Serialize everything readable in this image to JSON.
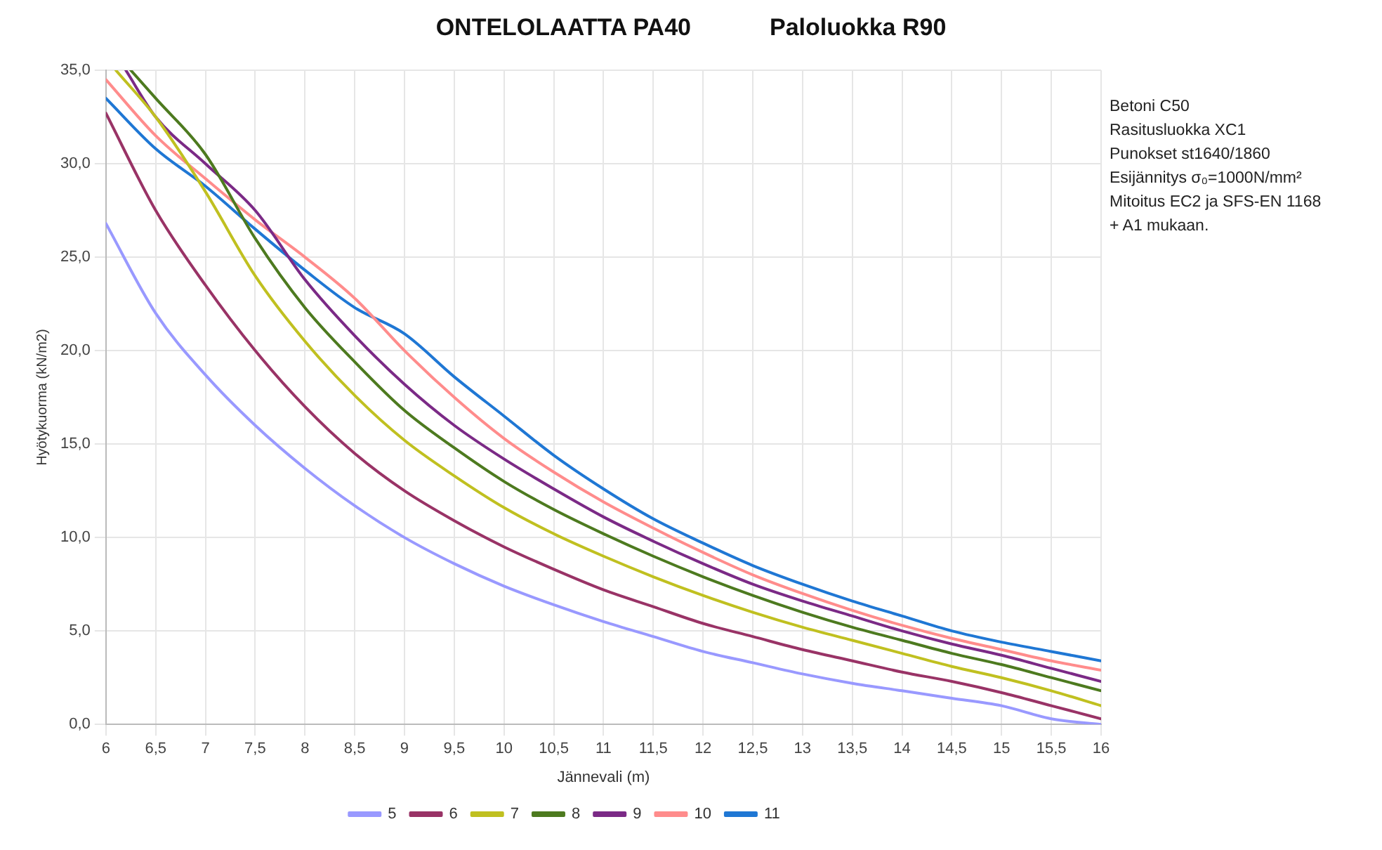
{
  "chart_data": {
    "type": "line",
    "title": "ONTELOLAATTA PA40",
    "subtitle": "Paloluokka R90",
    "xlabel": "Jännevali (m)",
    "ylabel": "Hyötykuorma (kN/m2)",
    "annotations": [
      "Betoni C50",
      "Rasitusluokka XC1",
      "Punokset st1640/1860",
      "Esijännitys σ₀=1000N/mm²",
      "Mitoitus EC2 ja SFS-EN 1168",
      "+ A1 mukaan."
    ],
    "x": [
      6,
      6.5,
      7,
      7.5,
      8,
      8.5,
      9,
      9.5,
      10,
      10.5,
      11,
      11.5,
      12,
      12.5,
      13,
      13.5,
      14,
      14.5,
      15,
      15.5,
      16
    ],
    "series": [
      {
        "name": "5",
        "color": "#9999ff",
        "values": [
          26.8,
          22.0,
          18.7,
          16.0,
          13.7,
          11.7,
          10.0,
          8.6,
          7.4,
          6.4,
          5.5,
          4.7,
          3.9,
          3.3,
          2.7,
          2.2,
          1.8,
          1.4,
          1.0,
          0.3,
          0.0
        ]
      },
      {
        "name": "6",
        "color": "#993366",
        "values": [
          32.7,
          27.5,
          23.5,
          20.0,
          17.0,
          14.5,
          12.5,
          10.9,
          9.5,
          8.3,
          7.2,
          6.3,
          5.4,
          4.7,
          4.0,
          3.4,
          2.8,
          2.3,
          1.7,
          1.0,
          0.3
        ]
      },
      {
        "name": "7",
        "color": "#c0c020",
        "x": [
          6.1,
          6.5,
          7,
          7.5,
          8,
          8.5,
          9,
          9.5,
          10,
          10.5,
          11,
          11.5,
          12,
          12.5,
          13,
          13.5,
          14,
          14.5,
          15,
          15.5,
          16
        ],
        "values": [
          35.0,
          32.5,
          28.5,
          24.0,
          20.5,
          17.6,
          15.2,
          13.3,
          11.6,
          10.2,
          9.0,
          7.9,
          6.9,
          6.0,
          5.2,
          4.5,
          3.8,
          3.1,
          2.5,
          1.8,
          1.0
        ]
      },
      {
        "name": "8",
        "color": "#4d7a1f",
        "x": [
          6.25,
          6.5,
          7,
          7.5,
          8,
          8.5,
          9,
          9.5,
          10,
          10.5,
          11,
          11.5,
          12,
          12.5,
          13,
          13.5,
          14,
          14.5,
          15,
          15.5,
          16
        ],
        "values": [
          35.0,
          33.5,
          30.5,
          26.0,
          22.3,
          19.4,
          16.8,
          14.8,
          13.0,
          11.5,
          10.2,
          9.0,
          7.9,
          6.9,
          6.0,
          5.2,
          4.5,
          3.8,
          3.2,
          2.5,
          1.8
        ]
      },
      {
        "name": "9",
        "color": "#7b2a86",
        "x": [
          6.2,
          6.5,
          7,
          7.5,
          8,
          8.5,
          9,
          9.5,
          10,
          10.5,
          11,
          11.5,
          12,
          12.5,
          13,
          13.5,
          14,
          14.5,
          15,
          15.5,
          16
        ],
        "values": [
          35.0,
          32.5,
          30.0,
          27.5,
          23.8,
          20.8,
          18.2,
          16.0,
          14.2,
          12.6,
          11.1,
          9.8,
          8.6,
          7.5,
          6.6,
          5.8,
          5.0,
          4.3,
          3.7,
          3.0,
          2.3
        ]
      },
      {
        "name": "10",
        "color": "#ff8c8c",
        "values": [
          34.5,
          31.5,
          29.2,
          27.0,
          25.0,
          22.8,
          20.0,
          17.5,
          15.3,
          13.5,
          11.9,
          10.5,
          9.2,
          8.0,
          7.0,
          6.1,
          5.3,
          4.6,
          4.0,
          3.4,
          2.9
        ]
      },
      {
        "name": "11",
        "color": "#1f77d4",
        "values": [
          33.5,
          30.8,
          28.8,
          26.5,
          24.3,
          22.3,
          20.9,
          18.6,
          16.5,
          14.4,
          12.6,
          11.0,
          9.7,
          8.5,
          7.5,
          6.6,
          5.8,
          5.0,
          4.4,
          3.9,
          3.4
        ]
      }
    ],
    "xlim": [
      6,
      16
    ],
    "xticks": [
      6,
      {
        "value": 6.5,
        "label": "6,5"
      },
      7,
      {
        "value": 7.5,
        "label": "7,5"
      },
      8,
      {
        "value": 8.5,
        "label": "8,5"
      },
      9,
      {
        "value": 9.5,
        "label": "9,5"
      },
      10,
      {
        "value": 10.5,
        "label": "10,5"
      },
      11,
      {
        "value": 11.5,
        "label": "11,5"
      },
      12,
      {
        "value": 12.5,
        "label": "12,5"
      },
      13,
      {
        "value": 13.5,
        "label": "13,5"
      },
      14,
      {
        "value": 14.5,
        "label": "14,5"
      },
      15,
      {
        "value": 15.5,
        "label": "15,5"
      },
      16
    ],
    "ylim": [
      0,
      35
    ],
    "yticks": [
      {
        "value": 0,
        "label": "0,0"
      },
      {
        "value": 5,
        "label": "5,0"
      },
      {
        "value": 10,
        "label": "10,0"
      },
      {
        "value": 15,
        "label": "15,0"
      },
      {
        "value": 20,
        "label": "20,0"
      },
      {
        "value": 25,
        "label": "25,0"
      },
      {
        "value": 30,
        "label": "30,0"
      },
      {
        "value": 35,
        "label": "35,0"
      }
    ],
    "grid": true,
    "legend": "bottom",
    "marker": "none",
    "line_style": "solid"
  }
}
